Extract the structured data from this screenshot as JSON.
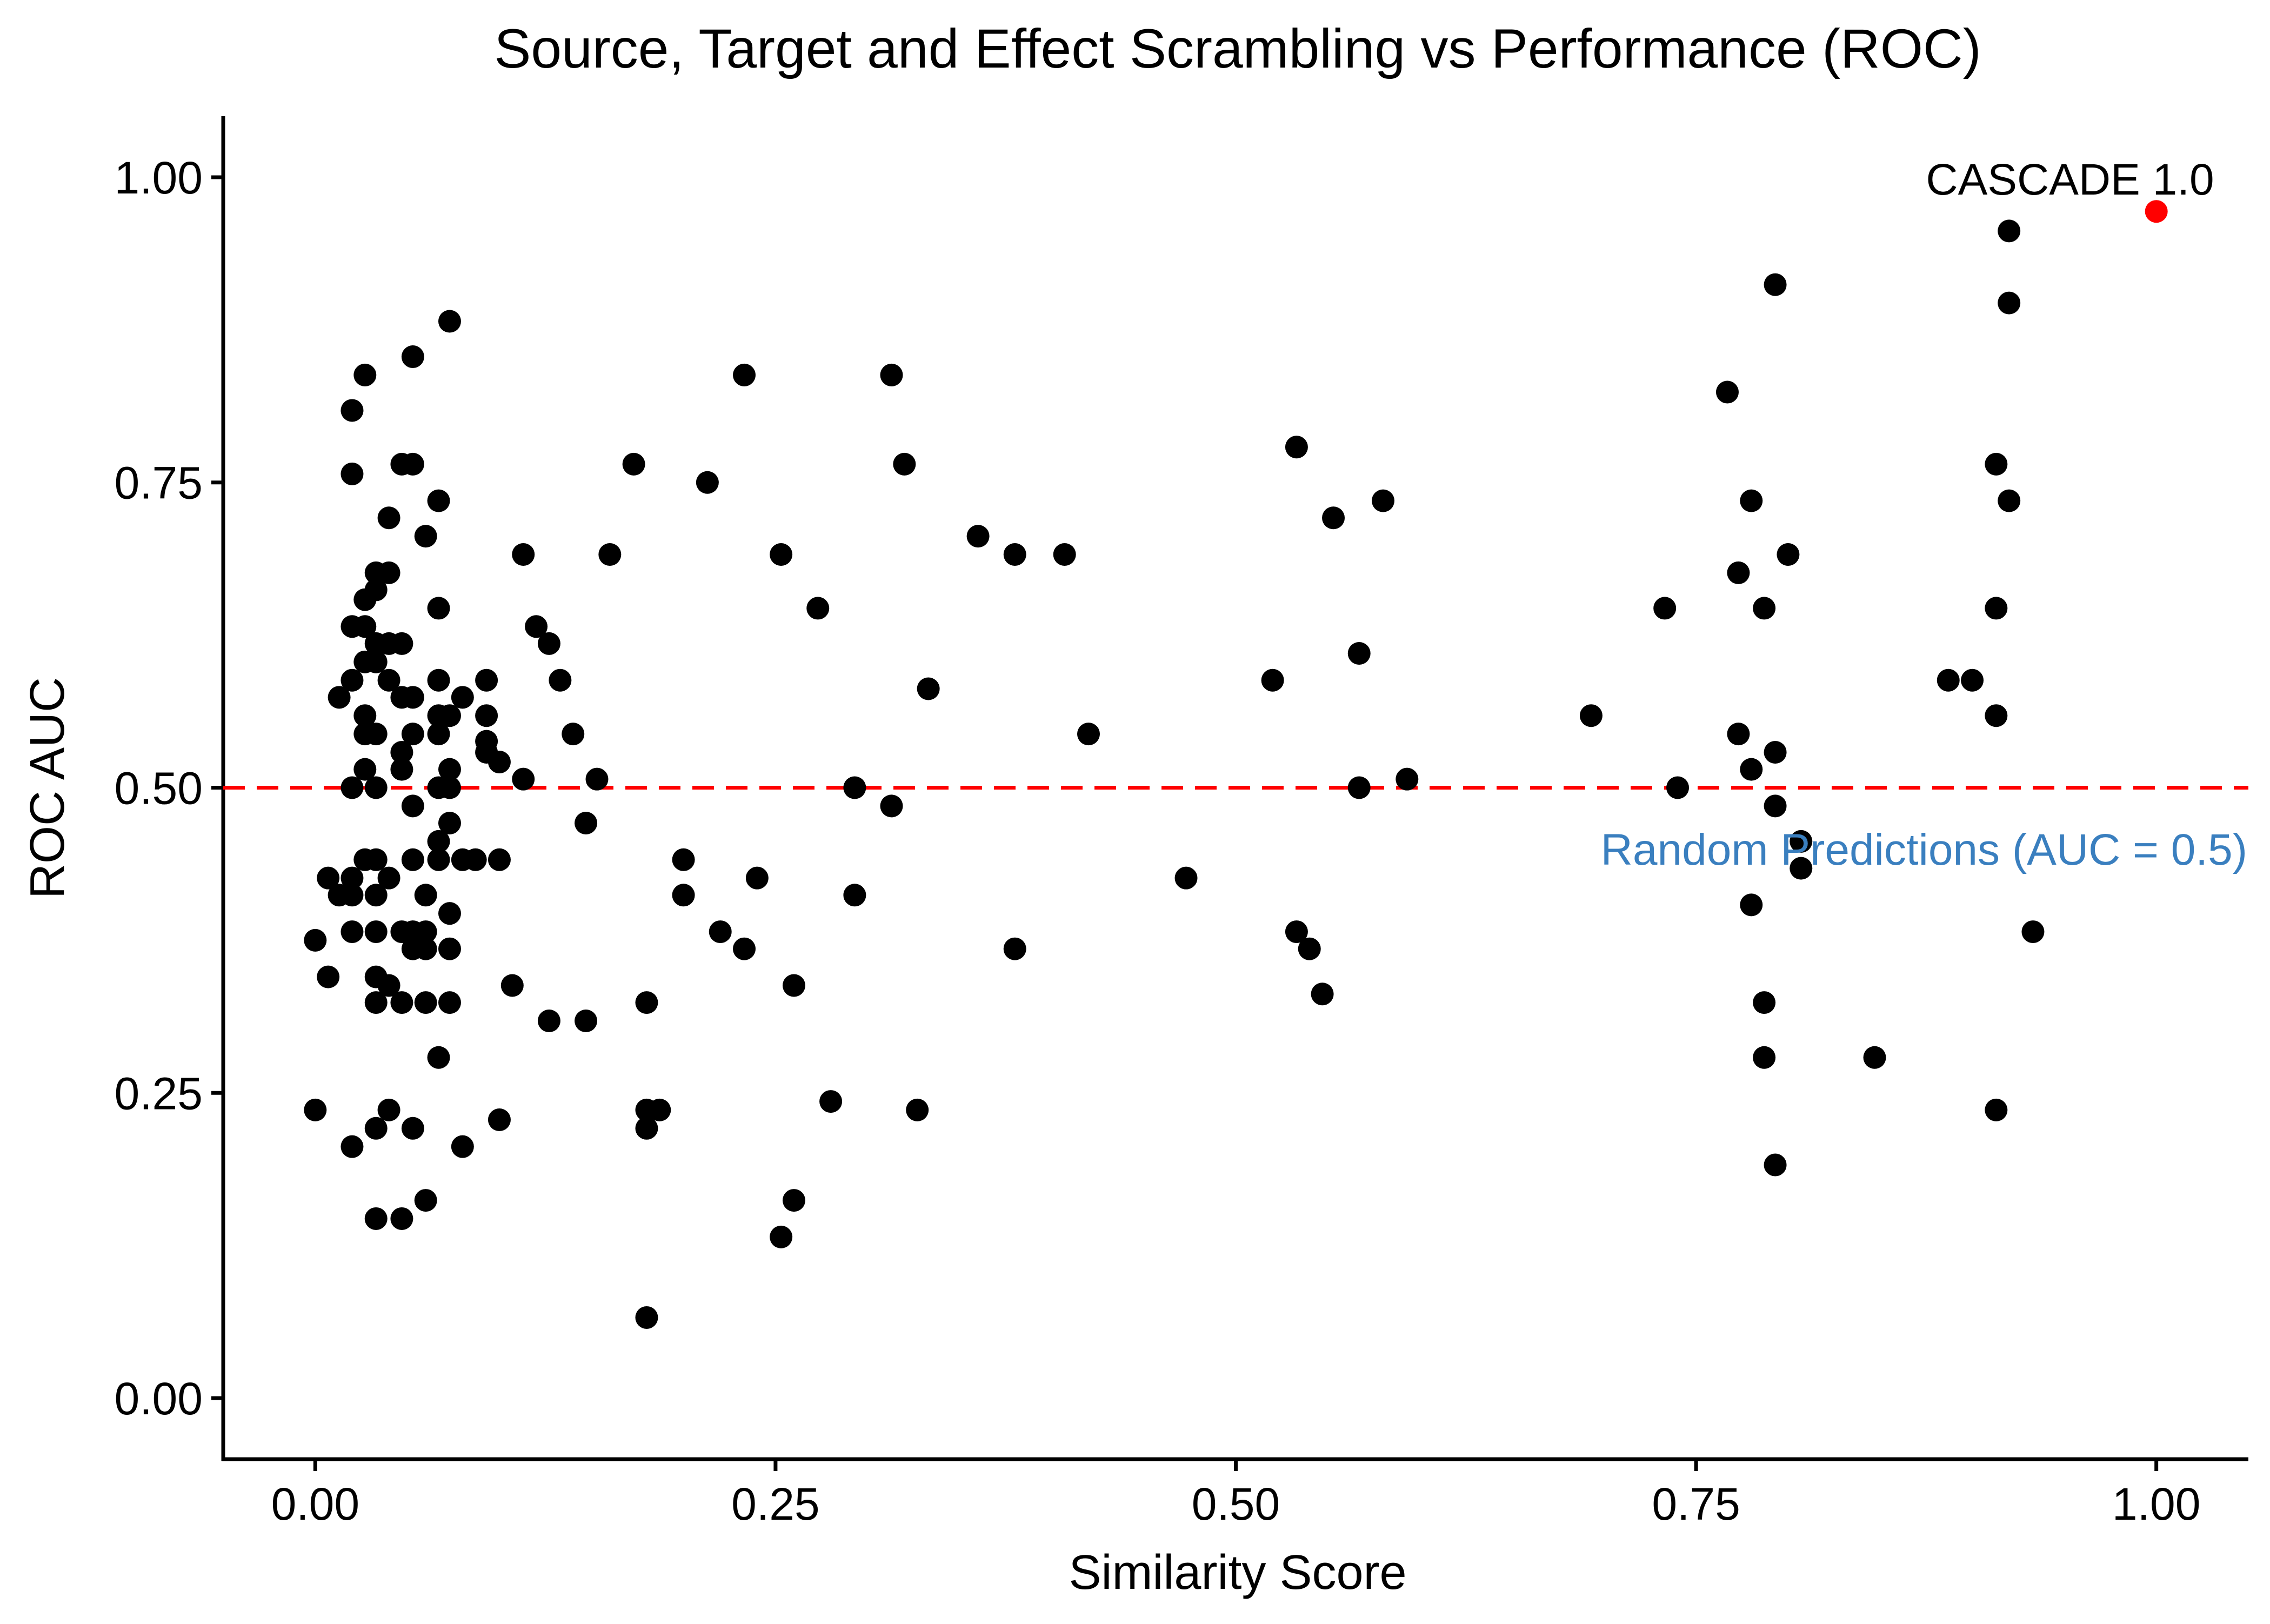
{
  "chart_data": {
    "type": "scatter",
    "title": "Source, Target and Effect Scrambling vs Performance (ROC)",
    "xlabel": "Similarity Score",
    "ylabel": "ROC AUC",
    "xlim": [
      -0.05,
      1.05
    ],
    "ylim": [
      -0.05,
      1.05
    ],
    "x_ticks": [
      0,
      0.25,
      0.5,
      0.75,
      1
    ],
    "x_tick_labels": [
      "0.00",
      "0.25",
      "0.50",
      "0.75",
      "1.00"
    ],
    "y_ticks": [
      0,
      0.25,
      0.5,
      0.75,
      1
    ],
    "y_tick_labels": [
      "0.00",
      "0.25",
      "0.50",
      "0.75",
      "1.00"
    ],
    "grid": false,
    "legend": "none",
    "colors": {
      "points": "#000000",
      "highlight": "#ff0000",
      "reference_line": "#ff0000",
      "reference_label": "#3a7fbf"
    },
    "reference_line": {
      "y": 0.5,
      "style": "dashed",
      "label": "Random Predictions (AUC = 0.5)"
    },
    "highlight": {
      "x": 1.0,
      "y": 0.972,
      "label": "CASCADE 1.0"
    },
    "points": [
      [
        0.0,
        0.375
      ],
      [
        0.0,
        0.236
      ],
      [
        0.007,
        0.426
      ],
      [
        0.007,
        0.345
      ],
      [
        0.013,
        0.574
      ],
      [
        0.013,
        0.412
      ],
      [
        0.02,
        0.809
      ],
      [
        0.02,
        0.757
      ],
      [
        0.02,
        0.632
      ],
      [
        0.02,
        0.588
      ],
      [
        0.02,
        0.5
      ],
      [
        0.02,
        0.426
      ],
      [
        0.02,
        0.412
      ],
      [
        0.02,
        0.382
      ],
      [
        0.02,
        0.206
      ],
      [
        0.027,
        0.838
      ],
      [
        0.027,
        0.654
      ],
      [
        0.027,
        0.632
      ],
      [
        0.027,
        0.603
      ],
      [
        0.027,
        0.559
      ],
      [
        0.027,
        0.544
      ],
      [
        0.027,
        0.515
      ],
      [
        0.027,
        0.441
      ],
      [
        0.033,
        0.676
      ],
      [
        0.033,
        0.662
      ],
      [
        0.033,
        0.618
      ],
      [
        0.033,
        0.603
      ],
      [
        0.033,
        0.544
      ],
      [
        0.033,
        0.5
      ],
      [
        0.033,
        0.441
      ],
      [
        0.033,
        0.412
      ],
      [
        0.033,
        0.382
      ],
      [
        0.033,
        0.345
      ],
      [
        0.033,
        0.324
      ],
      [
        0.033,
        0.221
      ],
      [
        0.033,
        0.147
      ],
      [
        0.04,
        0.721
      ],
      [
        0.04,
        0.676
      ],
      [
        0.04,
        0.618
      ],
      [
        0.04,
        0.588
      ],
      [
        0.04,
        0.426
      ],
      [
        0.04,
        0.338
      ],
      [
        0.04,
        0.236
      ],
      [
        0.047,
        0.765
      ],
      [
        0.047,
        0.618
      ],
      [
        0.047,
        0.574
      ],
      [
        0.047,
        0.529
      ],
      [
        0.047,
        0.515
      ],
      [
        0.047,
        0.382
      ],
      [
        0.047,
        0.324
      ],
      [
        0.047,
        0.147
      ],
      [
        0.053,
        0.853
      ],
      [
        0.053,
        0.765
      ],
      [
        0.053,
        0.574
      ],
      [
        0.053,
        0.544
      ],
      [
        0.053,
        0.485
      ],
      [
        0.053,
        0.441
      ],
      [
        0.053,
        0.382
      ],
      [
        0.053,
        0.368
      ],
      [
        0.053,
        0.221
      ],
      [
        0.06,
        0.706
      ],
      [
        0.06,
        0.412
      ],
      [
        0.06,
        0.382
      ],
      [
        0.06,
        0.368
      ],
      [
        0.06,
        0.324
      ],
      [
        0.06,
        0.162
      ],
      [
        0.067,
        0.735
      ],
      [
        0.067,
        0.647
      ],
      [
        0.067,
        0.588
      ],
      [
        0.067,
        0.559
      ],
      [
        0.067,
        0.544
      ],
      [
        0.067,
        0.5
      ],
      [
        0.067,
        0.456
      ],
      [
        0.067,
        0.441
      ],
      [
        0.067,
        0.279
      ],
      [
        0.073,
        0.882
      ],
      [
        0.073,
        0.559
      ],
      [
        0.073,
        0.515
      ],
      [
        0.073,
        0.5
      ],
      [
        0.073,
        0.471
      ],
      [
        0.073,
        0.397
      ],
      [
        0.073,
        0.368
      ],
      [
        0.073,
        0.324
      ],
      [
        0.08,
        0.574
      ],
      [
        0.08,
        0.441
      ],
      [
        0.08,
        0.206
      ],
      [
        0.087,
        0.441
      ],
      [
        0.093,
        0.588
      ],
      [
        0.093,
        0.559
      ],
      [
        0.093,
        0.529
      ],
      [
        0.093,
        0.538
      ],
      [
        0.1,
        0.521
      ],
      [
        0.1,
        0.441
      ],
      [
        0.1,
        0.228
      ],
      [
        0.107,
        0.338
      ],
      [
        0.113,
        0.691
      ],
      [
        0.113,
        0.507
      ],
      [
        0.12,
        0.632
      ],
      [
        0.127,
        0.618
      ],
      [
        0.127,
        0.309
      ],
      [
        0.133,
        0.588
      ],
      [
        0.14,
        0.544
      ],
      [
        0.147,
        0.471
      ],
      [
        0.147,
        0.309
      ],
      [
        0.153,
        0.507
      ],
      [
        0.16,
        0.691
      ],
      [
        0.173,
        0.765
      ],
      [
        0.18,
        0.324
      ],
      [
        0.18,
        0.236
      ],
      [
        0.18,
        0.221
      ],
      [
        0.18,
        0.066
      ],
      [
        0.187,
        0.236
      ],
      [
        0.2,
        0.441
      ],
      [
        0.2,
        0.412
      ],
      [
        0.213,
        0.75
      ],
      [
        0.22,
        0.382
      ],
      [
        0.233,
        0.838
      ],
      [
        0.233,
        0.368
      ],
      [
        0.24,
        0.426
      ],
      [
        0.253,
        0.691
      ],
      [
        0.253,
        0.132
      ],
      [
        0.26,
        0.338
      ],
      [
        0.26,
        0.162
      ],
      [
        0.273,
        0.647
      ],
      [
        0.28,
        0.243
      ],
      [
        0.293,
        0.5
      ],
      [
        0.293,
        0.412
      ],
      [
        0.313,
        0.838
      ],
      [
        0.313,
        0.485
      ],
      [
        0.32,
        0.765
      ],
      [
        0.327,
        0.236
      ],
      [
        0.333,
        0.581
      ],
      [
        0.36,
        0.706
      ],
      [
        0.38,
        0.691
      ],
      [
        0.38,
        0.368
      ],
      [
        0.407,
        0.691
      ],
      [
        0.42,
        0.544
      ],
      [
        0.473,
        0.426
      ],
      [
        0.52,
        0.588
      ],
      [
        0.533,
        0.779
      ],
      [
        0.533,
        0.382
      ],
      [
        0.54,
        0.368
      ],
      [
        0.547,
        0.331
      ],
      [
        0.553,
        0.721
      ],
      [
        0.567,
        0.61
      ],
      [
        0.567,
        0.5
      ],
      [
        0.58,
        0.735
      ],
      [
        0.593,
        0.507
      ],
      [
        0.693,
        0.559
      ],
      [
        0.733,
        0.647
      ],
      [
        0.74,
        0.5
      ],
      [
        0.767,
        0.824
      ],
      [
        0.773,
        0.676
      ],
      [
        0.773,
        0.544
      ],
      [
        0.78,
        0.735
      ],
      [
        0.78,
        0.515
      ],
      [
        0.78,
        0.404
      ],
      [
        0.787,
        0.647
      ],
      [
        0.787,
        0.324
      ],
      [
        0.787,
        0.279
      ],
      [
        0.793,
        0.912
      ],
      [
        0.793,
        0.529
      ],
      [
        0.793,
        0.485
      ],
      [
        0.793,
        0.191
      ],
      [
        0.8,
        0.691
      ],
      [
        0.807,
        0.456
      ],
      [
        0.807,
        0.434
      ],
      [
        0.847,
        0.279
      ],
      [
        0.887,
        0.588
      ],
      [
        0.9,
        0.588
      ],
      [
        0.913,
        0.765
      ],
      [
        0.913,
        0.647
      ],
      [
        0.913,
        0.559
      ],
      [
        0.913,
        0.236
      ],
      [
        0.92,
        0.956
      ],
      [
        0.92,
        0.897
      ],
      [
        0.92,
        0.735
      ],
      [
        0.933,
        0.382
      ]
    ]
  }
}
